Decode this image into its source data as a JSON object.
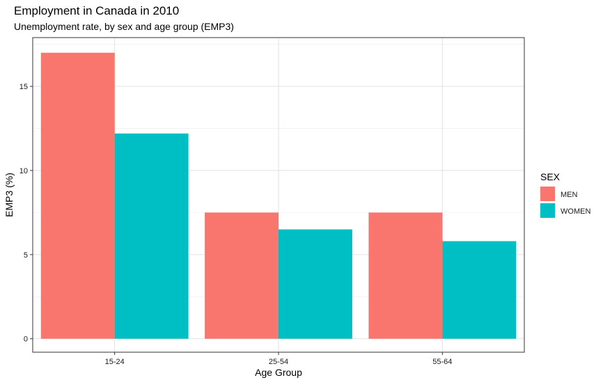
{
  "chart_data": {
    "type": "bar",
    "title": "Employment in Canada in 2010",
    "subtitle": "Unemployment rate, by sex and age group (EMP3)",
    "xlabel": "Age Group",
    "ylabel": "EMP3 (%)",
    "categories": [
      "15-24",
      "25-54",
      "55-64"
    ],
    "series": [
      {
        "name": "MEN",
        "values": [
          17.0,
          7.5,
          7.5
        ],
        "color": "#F8766D"
      },
      {
        "name": "WOMEN",
        "values": [
          12.2,
          6.5,
          5.8
        ],
        "color": "#00BFC4"
      }
    ],
    "ylim": [
      -0.8,
      17.9
    ],
    "yticks": [
      0,
      5,
      10,
      15
    ],
    "ytick_labels": [
      "0",
      "5",
      "10",
      "15"
    ],
    "grid": true,
    "legend": {
      "title": "SEX",
      "position": "right"
    }
  }
}
